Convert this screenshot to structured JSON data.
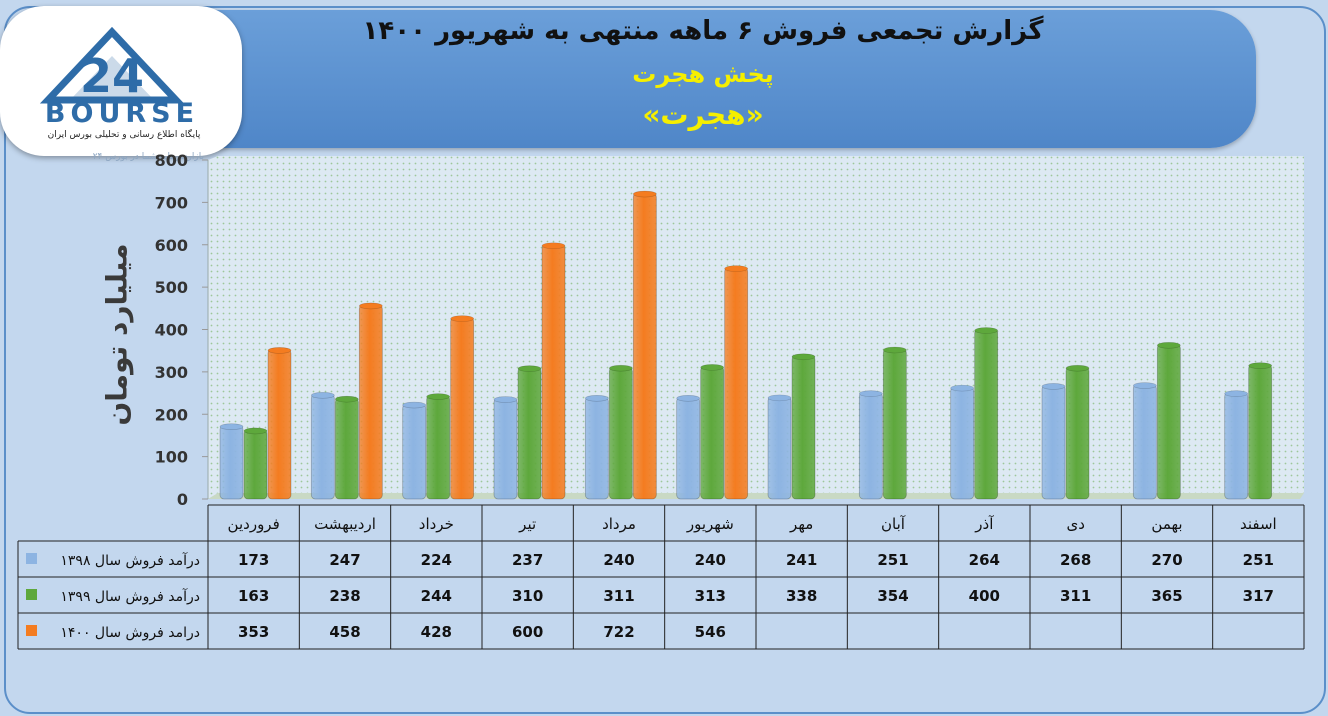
{
  "header": {
    "title": "گزارش تجمعی فروش ۶ ماهه منتهی به شهریور ۱۴۰۰",
    "subtitle": "پخش هجرت",
    "company": "«هجرت»"
  },
  "logo": {
    "number": "24",
    "word": "BOURSE",
    "tagline": "پایگاه اطلاع رسانی و تحلیلی بورس ایران",
    "watermark": "بازارسرمایه شما در بورس ۲۴"
  },
  "colors": {
    "series_1398": "#8db4e2",
    "series_1399": "#5ea83c",
    "series_1400": "#f47c20"
  },
  "chart_data": {
    "type": "bar",
    "ylabel": "میلیارد تومان",
    "ylim": [
      0,
      800
    ],
    "yticks": [
      0,
      100,
      200,
      300,
      400,
      500,
      600,
      700,
      800
    ],
    "categories": [
      "فروردین",
      "اردیبهشت",
      "خرداد",
      "تیر",
      "مرداد",
      "شهریور",
      "مهر",
      "آبان",
      "آذر",
      "دی",
      "بهمن",
      "اسفند"
    ],
    "series": [
      {
        "name": "درآمد فروش سال ۱۳۹۸",
        "color": "#8db4e2",
        "values": [
          173,
          247,
          224,
          237,
          240,
          240,
          241,
          251,
          264,
          268,
          270,
          251
        ]
      },
      {
        "name": "درآمد فروش سال ۱۳۹۹",
        "color": "#5ea83c",
        "values": [
          163,
          238,
          244,
          310,
          311,
          313,
          338,
          354,
          400,
          311,
          365,
          317
        ]
      },
      {
        "name": "درامد فروش سال ۱۴۰۰",
        "color": "#f47c20",
        "values": [
          353,
          458,
          428,
          600,
          722,
          546,
          null,
          null,
          null,
          null,
          null,
          null
        ]
      }
    ],
    "grid": true
  }
}
